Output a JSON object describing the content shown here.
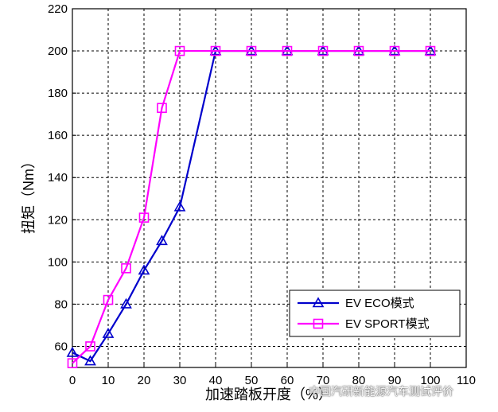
{
  "chart_data": {
    "type": "line",
    "title": "",
    "xlabel": "加速踏板开度（%）",
    "ylabel": "扭矩（Nm）",
    "xlim": [
      0,
      110
    ],
    "ylim": [
      50,
      220
    ],
    "xticks": [
      0,
      10,
      20,
      30,
      40,
      50,
      60,
      70,
      80,
      90,
      100,
      110
    ],
    "yticks": [
      60,
      80,
      100,
      120,
      140,
      160,
      180,
      200,
      220
    ],
    "grid": true,
    "legend_position": "bottom-right",
    "series": [
      {
        "name": "EV ECO模式",
        "color": "#0000cc",
        "marker": "triangle",
        "x": [
          0,
          5,
          10,
          15,
          20,
          25,
          30,
          40,
          50,
          60,
          70,
          80,
          90,
          100
        ],
        "y": [
          57,
          53,
          66,
          80,
          96,
          110,
          126,
          200,
          200,
          200,
          200,
          200,
          200,
          200
        ]
      },
      {
        "name": "EV SPORT模式",
        "color": "#ff00ff",
        "marker": "square",
        "x": [
          0,
          5,
          10,
          15,
          20,
          25,
          30,
          40,
          50,
          60,
          70,
          80,
          90,
          100
        ],
        "y": [
          52,
          60,
          82,
          97,
          121,
          173,
          200,
          200,
          200,
          200,
          200,
          200,
          200,
          200
        ]
      }
    ]
  },
  "watermark": {
    "text": "中国汽研新能源汽车测试评价"
  }
}
